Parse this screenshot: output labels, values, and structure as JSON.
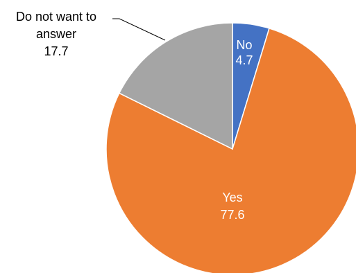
{
  "chart_data": {
    "type": "pie",
    "categories": [
      "No",
      "Yes",
      "Do not want to answer"
    ],
    "values": [
      4.7,
      77.6,
      17.7
    ],
    "colors": [
      "#4472C4",
      "#ED7D31",
      "#A5A5A5"
    ],
    "label_colors": [
      "#ffffff",
      "#ffffff",
      "#000000"
    ],
    "labels": [
      {
        "lines": [
          "No",
          "4.7"
        ]
      },
      {
        "lines": [
          "Yes",
          "77.6"
        ]
      },
      {
        "lines": [
          "Do not want to",
          "answer",
          "17.7"
        ]
      }
    ],
    "start_angle_deg": 0,
    "direction": "clockwise"
  }
}
